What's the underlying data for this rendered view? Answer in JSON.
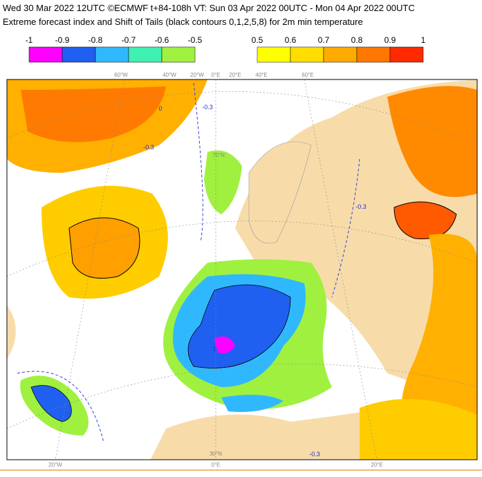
{
  "header": {
    "line1": "Wed 30 Mar 2022 12UTC ©ECMWF t+84-108h  VT: Sun 03 Apr 2022 00UTC - Mon 04 Apr 2022 00UTC",
    "line2": "Extreme forecast index and Shift of Tails (black contours 0,1,2,5,8) for 2m min temperature"
  },
  "colorbars": [
    {
      "labels": [
        "-1",
        "-0.9",
        "-0.8",
        "-0.7",
        "-0.6",
        "-0.5"
      ],
      "colors": [
        "#ff00ff",
        "#2060f0",
        "#30b8ff",
        "#40f0b0",
        "#a0f040"
      ]
    },
    {
      "labels": [
        "0.5",
        "0.6",
        "0.7",
        "0.8",
        "0.9",
        "1"
      ],
      "colors": [
        "#ffff00",
        "#ffdd00",
        "#ffaa00",
        "#ff7700",
        "#ff2a00"
      ]
    }
  ],
  "map": {
    "top_labels": [
      "60°W",
      "40°W",
      "20°W",
      "0°E",
      "20°E",
      "40°E",
      "60°E"
    ],
    "bottom_labels": [
      "20°W",
      "0°E",
      "20°E"
    ],
    "inner_labels": [
      "70°N",
      "30°N"
    ],
    "contour_labels": [
      "0",
      "-0.3",
      "-0.3",
      "-0.3",
      "-0.3",
      "1"
    ]
  }
}
